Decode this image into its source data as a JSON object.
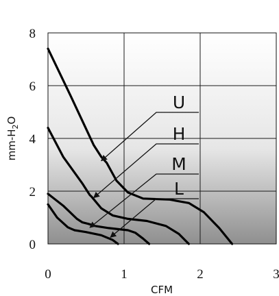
{
  "chart_data": {
    "type": "line",
    "xlabel": "CFM",
    "ylabel_parts": {
      "pre": "mm-H",
      "sub": "2",
      "post": "O"
    },
    "xlim": [
      0,
      3
    ],
    "ylim": [
      0,
      8
    ],
    "xticks": [
      "0",
      "1",
      "2",
      "3"
    ],
    "yticks": [
      "0",
      "2",
      "4",
      "6",
      "8"
    ],
    "grid": true,
    "background": {
      "top": "#ffffff",
      "bottom": "#8f8f8f"
    },
    "series": [
      {
        "name": "U",
        "points": [
          [
            0,
            7.4
          ],
          [
            0.3,
            5.6
          ],
          [
            0.6,
            3.75
          ],
          [
            0.7,
            3.3
          ],
          [
            0.77,
            3.08
          ],
          [
            0.9,
            2.4
          ],
          [
            1.05,
            1.95
          ],
          [
            1.25,
            1.72
          ],
          [
            1.6,
            1.68
          ],
          [
            1.85,
            1.55
          ],
          [
            2.05,
            1.2
          ],
          [
            2.25,
            0.6
          ],
          [
            2.42,
            0.0
          ]
        ],
        "arrow_tip": [
          0.7,
          3.15
        ]
      },
      {
        "name": "H",
        "points": [
          [
            0,
            4.4
          ],
          [
            0.2,
            3.3
          ],
          [
            0.45,
            2.3
          ],
          [
            0.55,
            1.85
          ],
          [
            0.57,
            1.8
          ],
          [
            0.7,
            1.35
          ],
          [
            0.85,
            1.08
          ],
          [
            1.05,
            0.95
          ],
          [
            1.3,
            0.87
          ],
          [
            1.55,
            0.68
          ],
          [
            1.72,
            0.38
          ],
          [
            1.85,
            0.0
          ]
        ],
        "arrow_tip": [
          0.6,
          1.75
        ]
      },
      {
        "name": "M",
        "points": [
          [
            0,
            1.9
          ],
          [
            0.2,
            1.45
          ],
          [
            0.38,
            0.95
          ],
          [
            0.45,
            0.82
          ],
          [
            0.53,
            0.76
          ],
          [
            0.62,
            0.68
          ],
          [
            0.8,
            0.6
          ],
          [
            1.05,
            0.52
          ],
          [
            1.15,
            0.42
          ],
          [
            1.25,
            0.2
          ],
          [
            1.33,
            0.0
          ]
        ],
        "arrow_tip": [
          0.55,
          0.62
        ]
      },
      {
        "name": "L",
        "points": [
          [
            0,
            1.5
          ],
          [
            0.12,
            1.0
          ],
          [
            0.26,
            0.63
          ],
          [
            0.3,
            0.58
          ],
          [
            0.35,
            0.52
          ],
          [
            0.5,
            0.45
          ],
          [
            0.7,
            0.33
          ],
          [
            0.85,
            0.15
          ],
          [
            0.92,
            0.0
          ]
        ],
        "arrow_tip": [
          0.82,
          0.25
        ]
      }
    ]
  }
}
